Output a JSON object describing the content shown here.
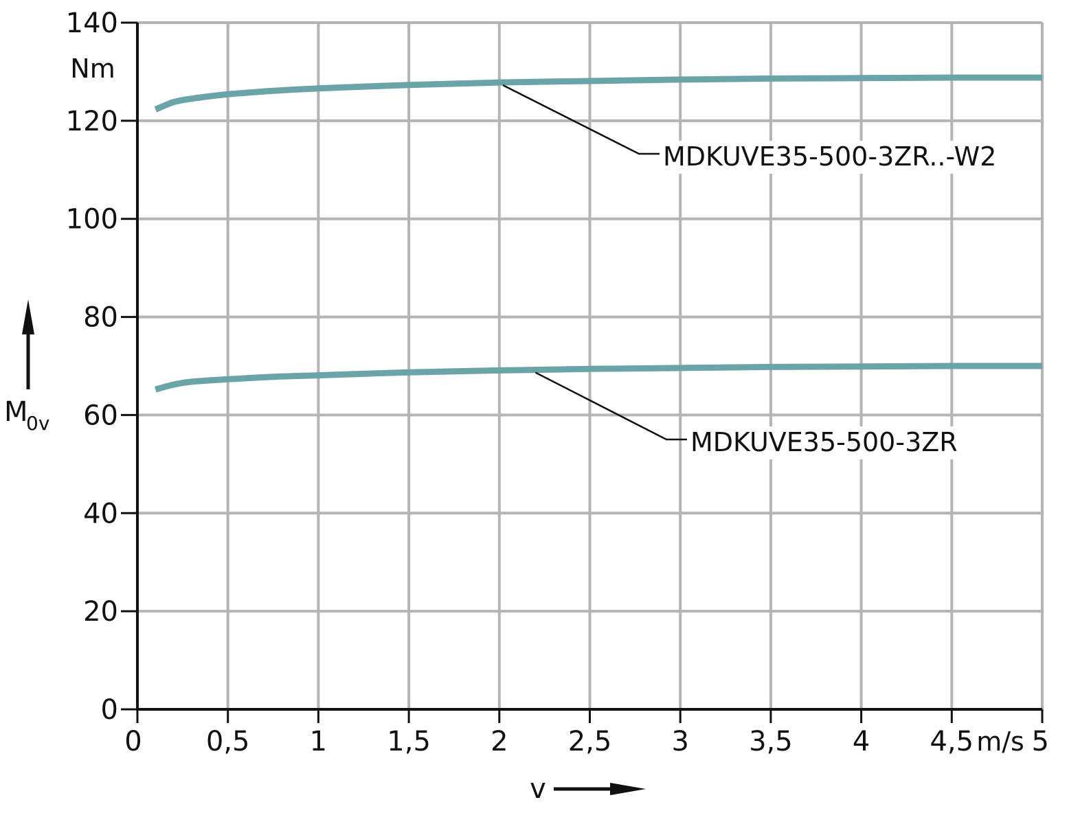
{
  "chart_data": {
    "type": "line",
    "title": "",
    "xlabel": "v",
    "ylabel_main": "M",
    "ylabel_sub": "0v",
    "x_unit": "m/s",
    "y_unit": "Nm",
    "xlim": [
      0,
      5
    ],
    "ylim": [
      0,
      140
    ],
    "x_ticks": [
      0,
      0.5,
      1,
      1.5,
      2,
      2.5,
      3,
      3.5,
      4,
      4.5,
      5
    ],
    "x_tick_labels": [
      "0",
      "0,5",
      "1",
      "1,5",
      "2",
      "2,5",
      "3",
      "3,5",
      "4",
      "4,5",
      "5"
    ],
    "y_ticks": [
      0,
      20,
      40,
      60,
      80,
      100,
      120,
      140
    ],
    "y_tick_labels": [
      "0",
      "20",
      "40",
      "60",
      "80",
      "100",
      "120",
      "140"
    ],
    "grid": true,
    "series": [
      {
        "name": "MDKUVE35-500-3ZR..-W2",
        "color": "#6aa3a8",
        "x": [
          0.1,
          0.2,
          0.3,
          0.5,
          0.75,
          1,
          1.5,
          2,
          2.5,
          3,
          3.5,
          4,
          4.5,
          5
        ],
        "y": [
          122.3,
          123.8,
          124.5,
          125.4,
          126.1,
          126.6,
          127.3,
          127.8,
          128.1,
          128.4,
          128.6,
          128.7,
          128.8,
          128.8
        ],
        "label_anchor_x": 2.02
      },
      {
        "name": "MDKUVE35-500-3ZR",
        "color": "#6aa3a8",
        "x": [
          0.1,
          0.2,
          0.3,
          0.5,
          0.75,
          1,
          1.5,
          2,
          2.5,
          3,
          3.5,
          4,
          4.5,
          5
        ],
        "y": [
          65.2,
          66.2,
          66.8,
          67.3,
          67.8,
          68.1,
          68.7,
          69.1,
          69.4,
          69.6,
          69.8,
          69.9,
          70.0,
          70.0
        ],
        "label_anchor_x": 2.2
      }
    ]
  }
}
